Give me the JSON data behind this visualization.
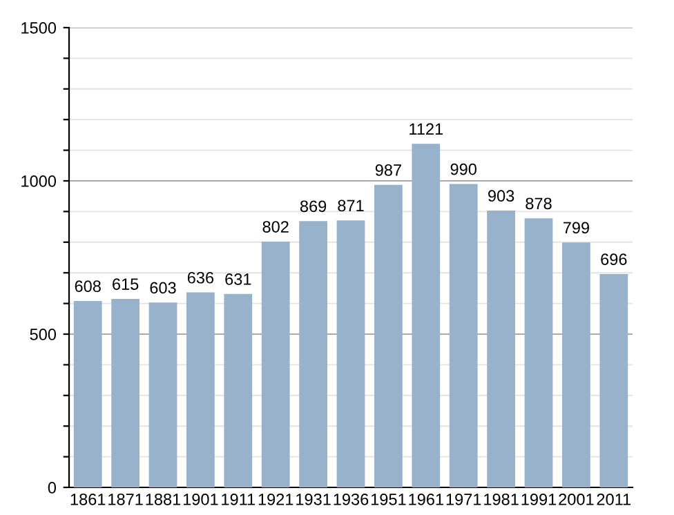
{
  "chart_data": {
    "type": "bar",
    "categories": [
      "1861",
      "1871",
      "1881",
      "1901",
      "1911",
      "1921",
      "1931",
      "1936",
      "1951",
      "1961",
      "1971",
      "1981",
      "1991",
      "2001",
      "2011"
    ],
    "values": [
      608,
      615,
      603,
      636,
      631,
      802,
      869,
      871,
      987,
      1121,
      990,
      903,
      878,
      799,
      696
    ],
    "color": "#98b2cc",
    "ylim": [
      0,
      1500
    ],
    "yticks": [
      0,
      {
        "value": 100,
        "label": null
      },
      {
        "value": 200,
        "label": null
      },
      {
        "value": 300,
        "label": null
      },
      {
        "value": 400,
        "label": null
      },
      500,
      {
        "value": 600,
        "label": null
      },
      {
        "value": 700,
        "label": null
      },
      {
        "value": 800,
        "label": null
      },
      {
        "value": 900,
        "label": null
      },
      1000,
      {
        "value": 1100,
        "label": null
      },
      {
        "value": 1200,
        "label": null
      },
      {
        "value": 1300,
        "label": null
      },
      {
        "value": 1400,
        "label": null
      },
      1500
    ],
    "grid": "y",
    "data_labels": true
  }
}
